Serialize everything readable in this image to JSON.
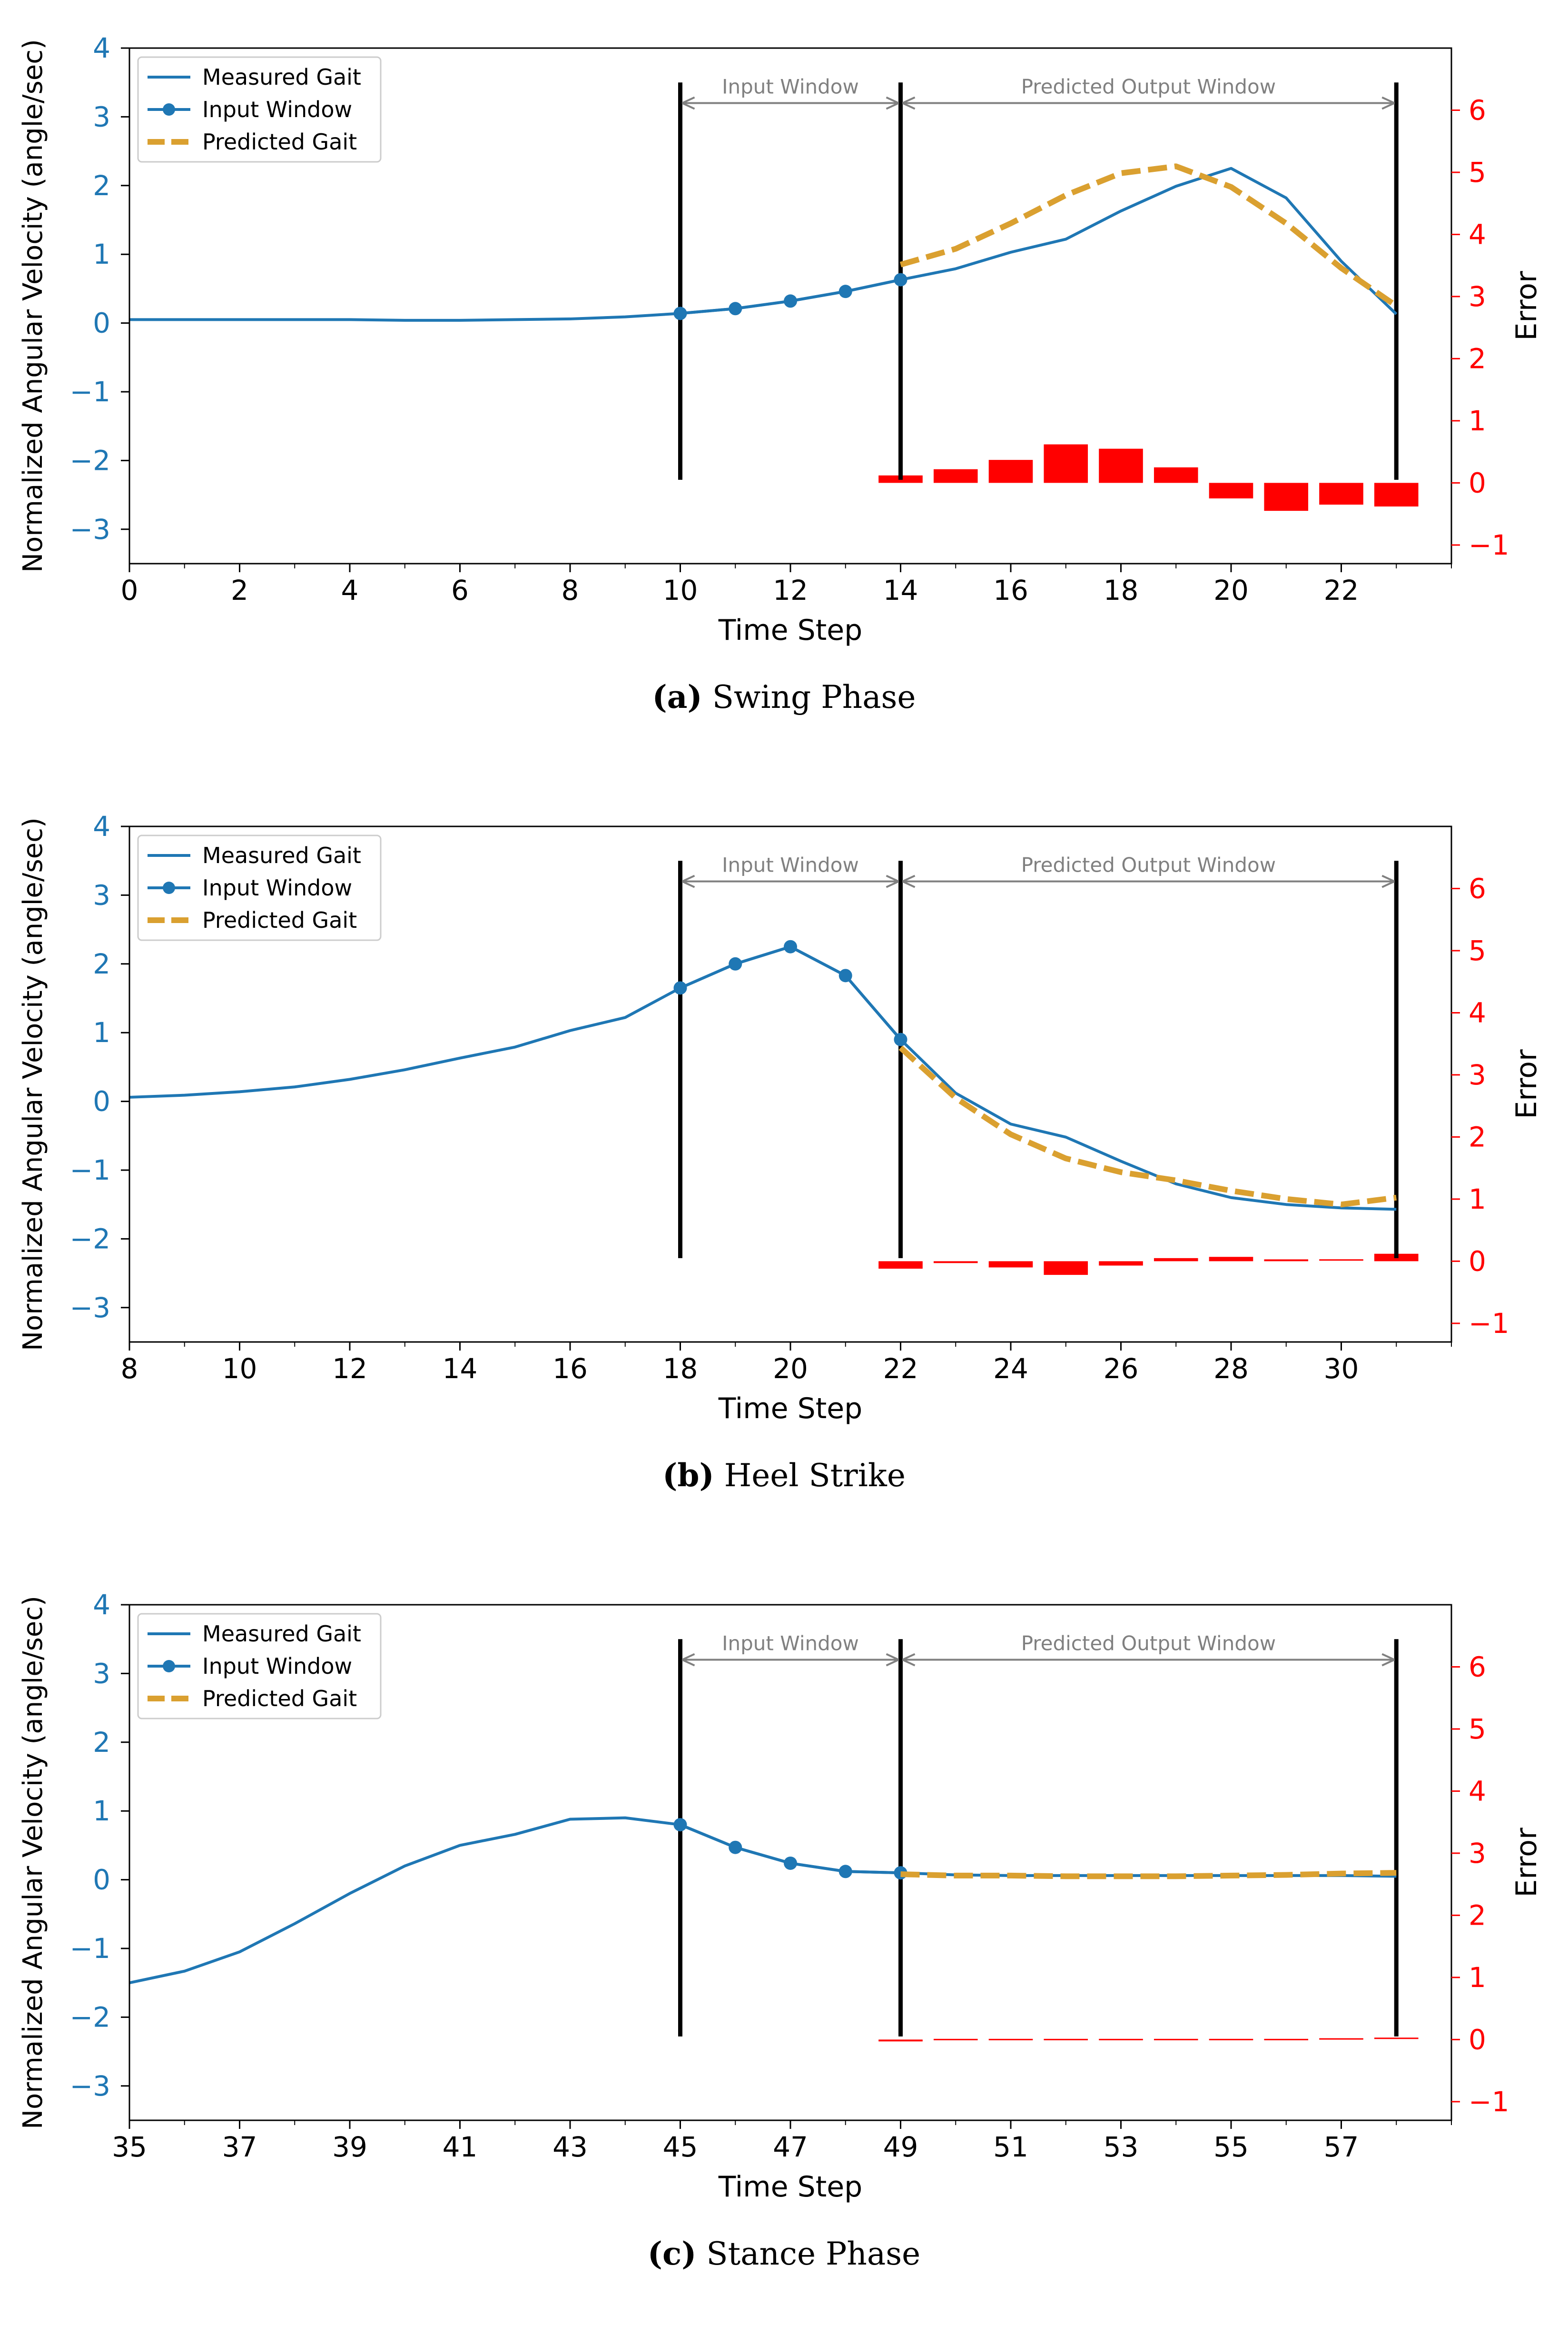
{
  "chart_data": [
    {
      "type": "line",
      "caption_label": "(a)",
      "caption_text": "Swing Phase",
      "xlabel": "Time Step",
      "ylabel": "Normalized Angular Velocity (angle/sec)",
      "y2label": "Error",
      "xlim": [
        0,
        24
      ],
      "ylim": [
        -3.5,
        4
      ],
      "y2lim": [
        -1.3,
        7
      ],
      "xticks": [
        0,
        2,
        4,
        6,
        8,
        10,
        12,
        14,
        16,
        18,
        20,
        22
      ],
      "yticks": [
        -3,
        -2,
        -1,
        0,
        1,
        2,
        3,
        4
      ],
      "y2ticks": [
        -1,
        0,
        1,
        2,
        3,
        4,
        5,
        6
      ],
      "colors": {
        "measured": "#1f77b4",
        "predicted": "#daa030",
        "error": "#ff0000",
        "window": "#000000",
        "annotation": "#808080"
      },
      "legend": {
        "position": "top-left",
        "entries": [
          "Measured Gait",
          "Input Window",
          "Predicted Gait"
        ]
      },
      "annotations": {
        "input_window": "Input Window",
        "output_window": "Predicted Output Window"
      },
      "window_lines": [
        10,
        14,
        23
      ],
      "series": [
        {
          "name": "Measured Gait",
          "x": [
            0,
            1,
            2,
            3,
            4,
            5,
            6,
            7,
            8,
            9,
            10,
            11,
            12,
            13,
            14,
            15,
            16,
            17,
            18,
            19,
            20,
            21,
            22,
            23
          ],
          "values": [
            0.05,
            0.05,
            0.05,
            0.05,
            0.05,
            0.04,
            0.04,
            0.05,
            0.06,
            0.09,
            0.14,
            0.21,
            0.32,
            0.46,
            0.63,
            0.79,
            1.03,
            1.22,
            1.63,
            1.99,
            2.25,
            1.82,
            0.9,
            0.13
          ]
        },
        {
          "name": "Input Window",
          "x": [
            10,
            11,
            12,
            13,
            14
          ],
          "values": [
            0.14,
            0.21,
            0.32,
            0.46,
            0.63
          ]
        },
        {
          "name": "Predicted Gait",
          "x": [
            14,
            15,
            16,
            17,
            18,
            19,
            20,
            21,
            22,
            23
          ],
          "values": [
            0.85,
            1.08,
            1.45,
            1.86,
            2.18,
            2.28,
            1.98,
            1.45,
            0.8,
            0.25
          ]
        },
        {
          "name": "Error",
          "x": [
            14,
            15,
            16,
            17,
            18,
            19,
            20,
            21,
            22,
            23
          ],
          "values": [
            0.12,
            0.22,
            0.37,
            0.62,
            0.55,
            0.25,
            -0.25,
            -0.45,
            -0.35,
            -0.38
          ]
        }
      ]
    },
    {
      "type": "line",
      "caption_label": "(b)",
      "caption_text": "Heel Strike",
      "xlabel": "Time Step",
      "ylabel": "Normalized Angular Velocity (angle/sec)",
      "y2label": "Error",
      "xlim": [
        8,
        32
      ],
      "ylim": [
        -3.5,
        4
      ],
      "y2lim": [
        -1.3,
        7
      ],
      "xticks": [
        8,
        10,
        12,
        14,
        16,
        18,
        20,
        22,
        24,
        26,
        28,
        30
      ],
      "yticks": [
        -3,
        -2,
        -1,
        0,
        1,
        2,
        3,
        4
      ],
      "y2ticks": [
        -1,
        0,
        1,
        2,
        3,
        4,
        5,
        6
      ],
      "colors": {
        "measured": "#1f77b4",
        "predicted": "#daa030",
        "error": "#ff0000",
        "window": "#000000",
        "annotation": "#808080"
      },
      "legend": {
        "position": "top-left",
        "entries": [
          "Measured Gait",
          "Input Window",
          "Predicted Gait"
        ]
      },
      "annotations": {
        "input_window": "Input Window",
        "output_window": "Predicted Output Window"
      },
      "window_lines": [
        18,
        22,
        31
      ],
      "series": [
        {
          "name": "Measured Gait",
          "x": [
            8,
            9,
            10,
            11,
            12,
            13,
            14,
            15,
            16,
            17,
            18,
            19,
            20,
            21,
            22,
            23,
            24,
            25,
            26,
            27,
            28,
            29,
            30,
            31
          ],
          "values": [
            0.06,
            0.09,
            0.14,
            0.21,
            0.32,
            0.46,
            0.63,
            0.79,
            1.03,
            1.22,
            1.65,
            2.0,
            2.25,
            1.83,
            0.9,
            0.12,
            -0.33,
            -0.52,
            -0.87,
            -1.2,
            -1.4,
            -1.5,
            -1.55,
            -1.57
          ]
        },
        {
          "name": "Input Window",
          "x": [
            18,
            19,
            20,
            21,
            22
          ],
          "values": [
            1.65,
            2.0,
            2.25,
            1.83,
            0.9
          ]
        },
        {
          "name": "Predicted Gait",
          "x": [
            22,
            23,
            24,
            25,
            26,
            27,
            28,
            29,
            30,
            31
          ],
          "values": [
            0.78,
            0.05,
            -0.48,
            -0.83,
            -1.03,
            -1.15,
            -1.3,
            -1.42,
            -1.5,
            -1.4
          ]
        },
        {
          "name": "Error",
          "x": [
            22,
            23,
            24,
            25,
            26,
            27,
            28,
            29,
            30,
            31
          ],
          "values": [
            -0.12,
            -0.03,
            -0.1,
            -0.22,
            -0.07,
            0.05,
            0.07,
            0.03,
            0.02,
            0.12
          ]
        }
      ]
    },
    {
      "type": "line",
      "caption_label": "(c)",
      "caption_text": "Stance Phase",
      "xlabel": "Time Step",
      "ylabel": "Normalized Angular Velocity (angle/sec)",
      "y2label": "Error",
      "xlim": [
        35,
        59
      ],
      "ylim": [
        -3.5,
        4
      ],
      "y2lim": [
        -1.3,
        7
      ],
      "xticks": [
        35,
        37,
        39,
        41,
        43,
        45,
        47,
        49,
        51,
        53,
        55,
        57
      ],
      "yticks": [
        -3,
        -2,
        -1,
        0,
        1,
        2,
        3,
        4
      ],
      "y2ticks": [
        -1,
        0,
        1,
        2,
        3,
        4,
        5,
        6
      ],
      "colors": {
        "measured": "#1f77b4",
        "predicted": "#daa030",
        "error": "#ff0000",
        "window": "#000000",
        "annotation": "#808080"
      },
      "legend": {
        "position": "top-left",
        "entries": [
          "Measured Gait",
          "Input Window",
          "Predicted Gait"
        ]
      },
      "annotations": {
        "input_window": "Input Window",
        "output_window": "Predicted Output Window"
      },
      "window_lines": [
        45,
        49,
        58
      ],
      "series": [
        {
          "name": "Measured Gait",
          "x": [
            35,
            36,
            37,
            38,
            39,
            40,
            41,
            42,
            43,
            44,
            45,
            46,
            47,
            48,
            49,
            50,
            51,
            52,
            53,
            54,
            55,
            56,
            57,
            58
          ],
          "values": [
            -1.5,
            -1.33,
            -1.05,
            -0.64,
            -0.2,
            0.2,
            0.5,
            0.66,
            0.88,
            0.9,
            0.8,
            0.47,
            0.24,
            0.12,
            0.1,
            0.07,
            0.06,
            0.06,
            0.06,
            0.06,
            0.06,
            0.06,
            0.06,
            0.05
          ]
        },
        {
          "name": "Input Window",
          "x": [
            45,
            46,
            47,
            48,
            49
          ],
          "values": [
            0.8,
            0.47,
            0.24,
            0.12,
            0.1
          ]
        },
        {
          "name": "Predicted Gait",
          "x": [
            49,
            50,
            51,
            52,
            53,
            54,
            55,
            56,
            57,
            58
          ],
          "values": [
            0.08,
            0.06,
            0.06,
            0.05,
            0.05,
            0.05,
            0.06,
            0.07,
            0.09,
            0.1
          ]
        },
        {
          "name": "Error",
          "x": [
            49,
            50,
            51,
            52,
            53,
            54,
            55,
            56,
            57,
            58
          ],
          "values": [
            -0.03,
            -0.02,
            -0.01,
            -0.01,
            -0.01,
            -0.01,
            -0.01,
            0.0,
            0.01,
            0.02
          ]
        }
      ]
    }
  ]
}
